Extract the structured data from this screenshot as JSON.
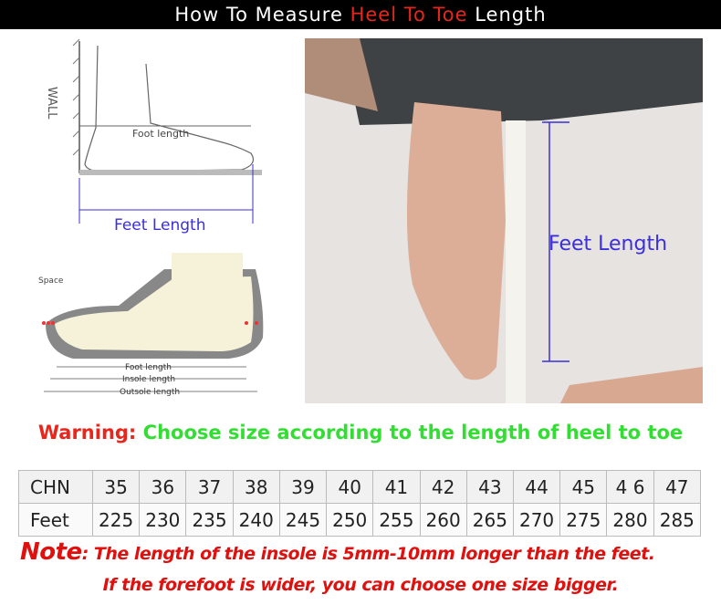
{
  "banner": {
    "pre": "How To Measure ",
    "highlight": "Heel To Toe",
    "post": " Length"
  },
  "diagram_top": {
    "wall": "WALL",
    "foot_length": "Foot length",
    "feet_length": "Feet Length"
  },
  "diagram_bottom": {
    "space": "Space",
    "foot_length": "Foot length",
    "insole_length": "Insole length",
    "outsole_length": "Outsole length"
  },
  "photo": {
    "label": "Feet Length"
  },
  "warning": {
    "prefix": "Warning:",
    "message": " Choose size according to the length of heel to toe"
  },
  "size_table": {
    "rows": [
      {
        "label": "CHN",
        "values": [
          "35",
          "36",
          "37",
          "38",
          "39",
          "40",
          "41",
          "42",
          "43",
          "44",
          "45",
          "4 6",
          "47"
        ]
      },
      {
        "label": "Feet",
        "values": [
          "225",
          "230",
          "235",
          "240",
          "245",
          "250",
          "255",
          "260",
          "265",
          "270",
          "275",
          "280",
          "285"
        ]
      }
    ]
  },
  "note": {
    "prefix": "Note",
    "line1": ": The length of the insole is  5mm-10mm longer than the feet.",
    "line2": "If the forefoot is wider, you can choose one size bigger."
  },
  "colors": {
    "accent_red": "#e8261c",
    "warning_green": "#33dd33",
    "label_blue": "#3b2fd8"
  }
}
